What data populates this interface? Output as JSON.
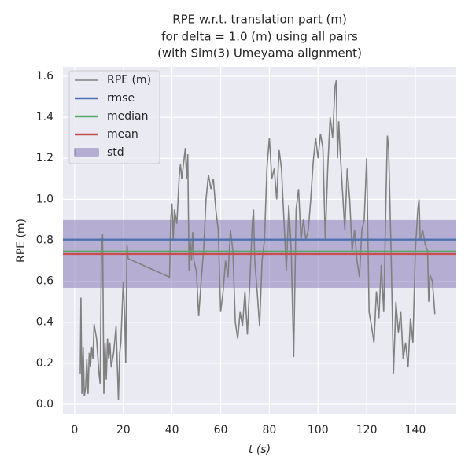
{
  "chart_data": {
    "type": "line",
    "title": [
      "RPE w.r.t. translation part (m)",
      "for delta = 1.0 (m) using all pairs",
      "(with Sim(3) Umeyama alignment)"
    ],
    "xlabel": "t (s)",
    "ylabel": "RPE (m)",
    "xlim": [
      -4.8,
      156.8
    ],
    "ylim": [
      -0.05,
      1.646
    ],
    "xticks": [
      0,
      20,
      40,
      60,
      80,
      100,
      120,
      140
    ],
    "yticks": [
      {
        "value": 0.0,
        "label": "0.0"
      },
      0.2,
      0.4,
      0.6,
      0.8,
      {
        "value": 1.0,
        "label": "1.0"
      },
      1.2,
      1.4,
      1.6
    ],
    "grid": true,
    "legend": "upper left",
    "series": [
      {
        "name": "RPE (m)",
        "color": "#808080",
        "x": [
          2.3,
          2.6,
          3,
          3.5,
          4,
          4.5,
          5,
          5.5,
          6,
          6.5,
          7,
          7.5,
          8,
          9,
          10,
          10.5,
          11,
          11.5,
          12,
          12.5,
          13,
          13.5,
          14,
          14.5,
          15,
          16,
          17,
          18,
          18.5,
          19,
          20,
          20.5,
          21,
          21.5,
          22,
          39,
          39.5,
          40,
          40.5,
          41,
          42,
          43,
          43.5,
          44,
          45,
          45.5,
          46,
          46.5,
          47,
          47.5,
          48,
          48.5,
          49,
          50,
          51,
          52,
          53,
          54,
          55,
          56,
          57,
          58,
          59,
          60,
          61,
          62,
          63,
          64,
          65,
          66,
          67,
          68,
          69,
          70,
          71,
          72,
          73,
          73.5,
          74,
          75,
          76,
          77,
          78,
          79,
          80,
          81,
          82,
          83,
          84,
          85,
          86,
          87,
          88,
          89,
          90,
          91,
          92,
          93,
          94,
          95,
          96,
          97,
          98,
          99,
          100,
          101,
          102,
          103,
          104,
          105,
          106,
          107,
          107.5,
          108,
          108.5,
          109,
          110,
          111,
          112,
          113,
          114,
          115,
          116,
          117,
          118,
          119,
          120,
          120.5,
          121,
          122,
          123,
          124,
          125,
          126,
          127,
          128,
          128.5,
          129,
          130,
          131,
          132,
          133,
          134,
          135,
          136,
          137,
          138,
          139,
          140,
          141,
          141.5,
          142,
          143,
          144,
          145,
          145.5,
          146,
          147,
          148
        ],
        "values": [
          0.15,
          0.52,
          0.05,
          0.28,
          0.04,
          0.08,
          0.22,
          0.05,
          0.25,
          0.18,
          0.28,
          0.22,
          0.39,
          0.32,
          0.15,
          0.1,
          0.75,
          0.83,
          0.05,
          0.3,
          0.12,
          0.32,
          0.22,
          0.3,
          0.18,
          0.25,
          0.38,
          0.02,
          0.25,
          0.3,
          0.6,
          0.45,
          0.2,
          0.78,
          0.71,
          0.62,
          0.9,
          0.98,
          0.8,
          0.95,
          0.88,
          1.12,
          1.17,
          1.1,
          1.2,
          1.25,
          1.1,
          1.22,
          0.65,
          0.8,
          0.7,
          0.84,
          0.7,
          0.65,
          0.43,
          0.6,
          0.75,
          1.0,
          1.12,
          1.05,
          1.1,
          0.95,
          0.85,
          0.45,
          0.55,
          0.7,
          0.62,
          0.85,
          0.75,
          0.4,
          0.32,
          0.45,
          0.38,
          0.55,
          0.34,
          0.6,
          0.88,
          0.95,
          0.7,
          0.55,
          0.38,
          0.7,
          0.8,
          1.15,
          1.3,
          1.1,
          1.15,
          1.0,
          1.24,
          1.15,
          0.9,
          0.65,
          0.97,
          0.75,
          0.23,
          0.95,
          1.05,
          0.8,
          0.9,
          0.8,
          0.85,
          1.0,
          1.18,
          1.3,
          1.2,
          1.32,
          1.25,
          0.8,
          1.15,
          1.4,
          1.3,
          1.55,
          1.58,
          1.2,
          1.38,
          1.25,
          1.05,
          0.85,
          1.15,
          1.0,
          0.75,
          0.85,
          0.7,
          0.62,
          0.85,
          0.9,
          1.2,
          0.8,
          0.45,
          0.38,
          0.3,
          0.55,
          0.42,
          0.68,
          0.45,
          1.05,
          1.31,
          1.25,
          0.75,
          0.15,
          0.5,
          0.35,
          0.45,
          0.22,
          0.3,
          0.18,
          0.42,
          0.3,
          0.75,
          0.95,
          1.0,
          0.8,
          0.85,
          0.78,
          0.75,
          0.5,
          0.63,
          0.6,
          0.44
        ]
      }
    ],
    "stats": [
      {
        "name": "rmse",
        "color": "#4c72b0",
        "value": 0.803
      },
      {
        "name": "median",
        "color": "#55a868",
        "value": 0.745
      },
      {
        "name": "mean",
        "color": "#c44e52",
        "value": 0.733
      },
      {
        "name": "std",
        "color": "#8172b2",
        "value": 0.165
      }
    ]
  }
}
